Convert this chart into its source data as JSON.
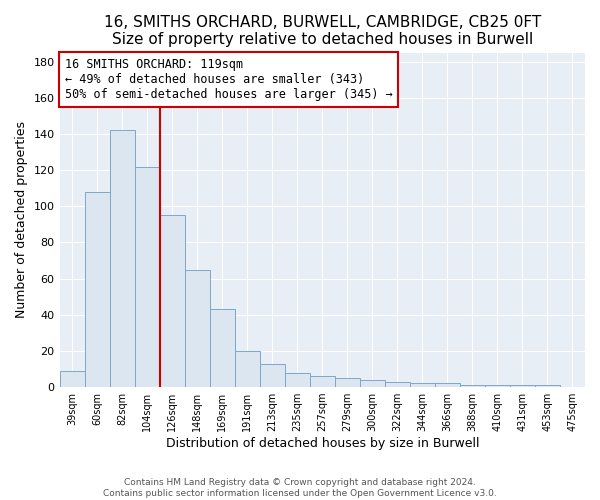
{
  "title": "16, SMITHS ORCHARD, BURWELL, CAMBRIDGE, CB25 0FT",
  "subtitle": "Size of property relative to detached houses in Burwell",
  "xlabel": "Distribution of detached houses by size in Burwell",
  "ylabel": "Number of detached properties",
  "categories": [
    "39sqm",
    "60sqm",
    "82sqm",
    "104sqm",
    "126sqm",
    "148sqm",
    "169sqm",
    "191sqm",
    "213sqm",
    "235sqm",
    "257sqm",
    "279sqm",
    "300sqm",
    "322sqm",
    "344sqm",
    "366sqm",
    "388sqm",
    "410sqm",
    "431sqm",
    "453sqm",
    "475sqm"
  ],
  "values": [
    9,
    108,
    142,
    122,
    95,
    65,
    43,
    20,
    13,
    8,
    6,
    5,
    4,
    3,
    2,
    2,
    1,
    1,
    1,
    1,
    0
  ],
  "bar_color": "#dce6f1",
  "bar_edge_color": "#7ea6c8",
  "vline_color": "#cc0000",
  "vline_x_index": 4,
  "annotation_text": "16 SMITHS ORCHARD: 119sqm\n← 49% of detached houses are smaller (343)\n50% of semi-detached houses are larger (345) →",
  "annotation_box_color": "#ffffff",
  "annotation_box_edge_color": "#cc0000",
  "ylim": [
    0,
    185
  ],
  "yticks": [
    0,
    20,
    40,
    60,
    80,
    100,
    120,
    140,
    160,
    180
  ],
  "ax_bg_color": "#e8eef5",
  "background_color": "#ffffff",
  "footer": "Contains HM Land Registry data © Crown copyright and database right 2024.\nContains public sector information licensed under the Open Government Licence v3.0.",
  "title_fontsize": 11,
  "xlabel_fontsize": 9,
  "ylabel_fontsize": 9,
  "annotation_fontsize": 8.5
}
